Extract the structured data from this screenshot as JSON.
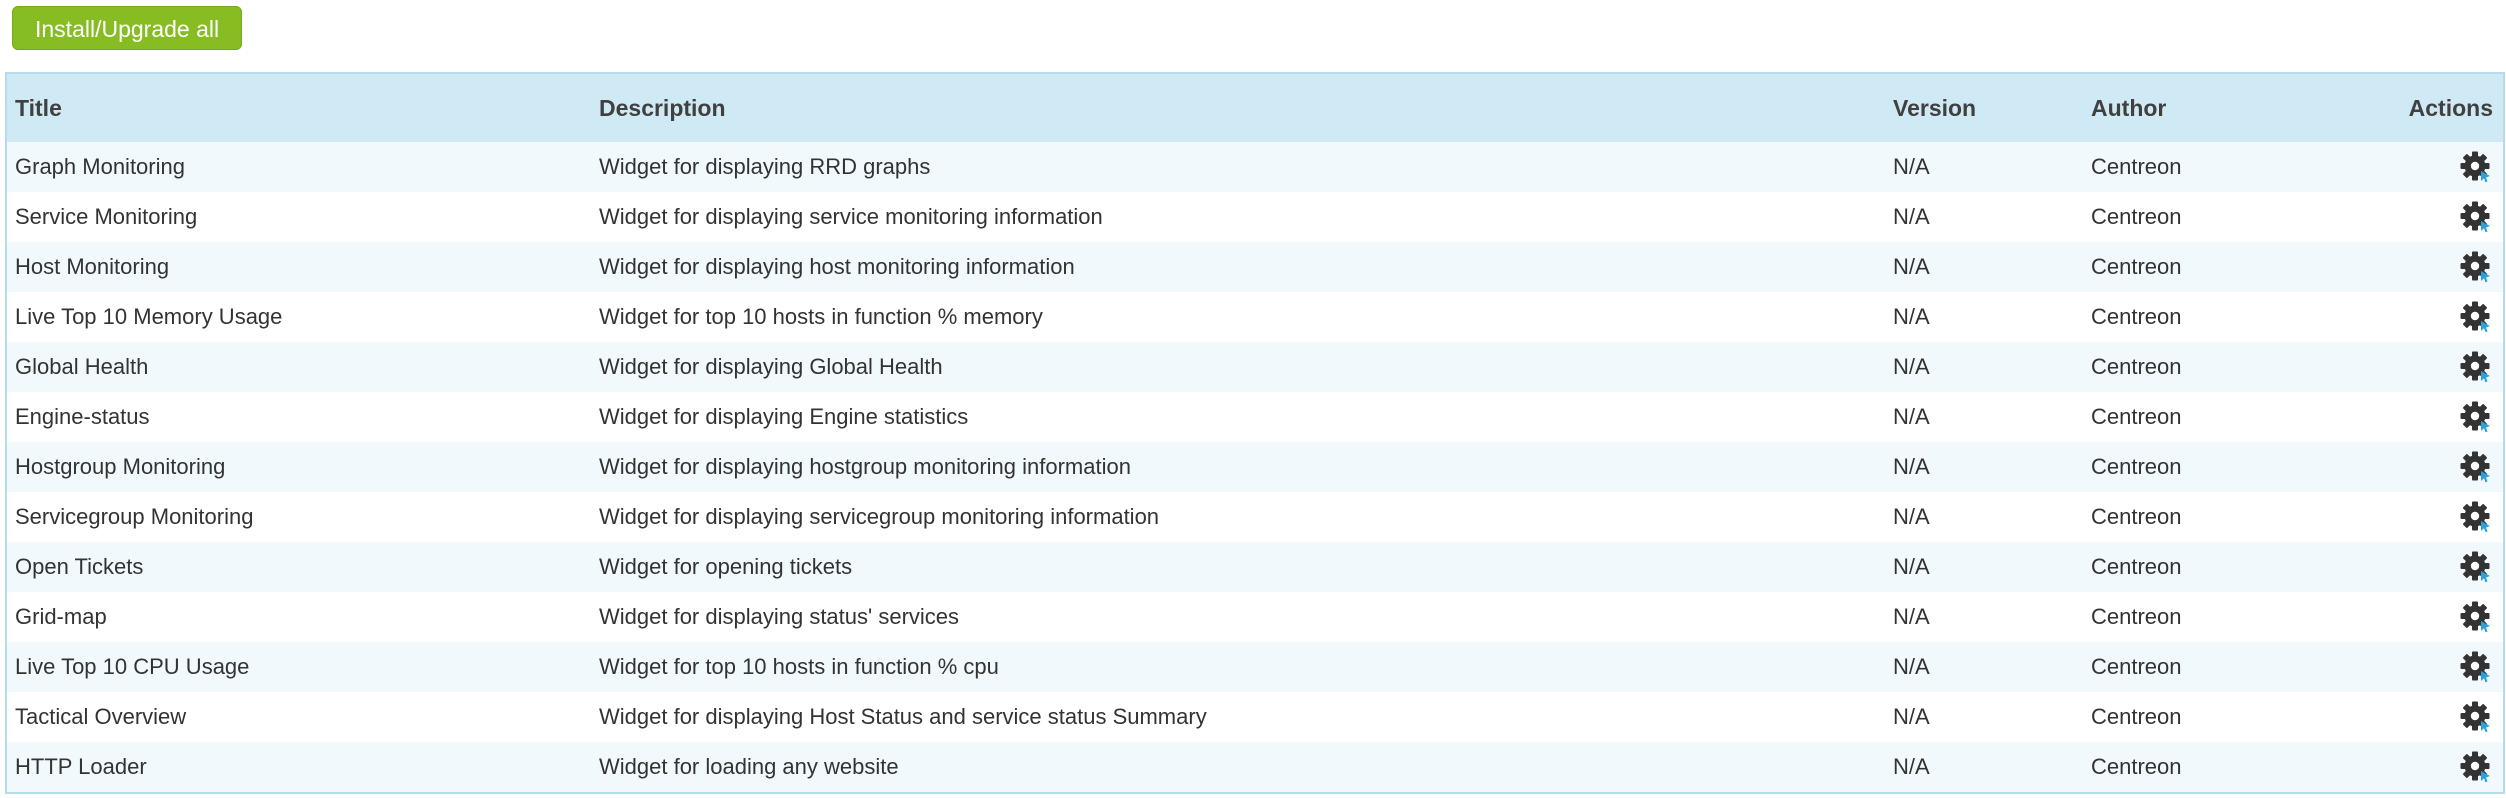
{
  "toolbar": {
    "install_all_label": "Install/Upgrade all"
  },
  "table": {
    "headers": {
      "title": "Title",
      "description": "Description",
      "version": "Version",
      "author": "Author",
      "actions": "Actions"
    },
    "action_icon": "gear-icon",
    "rows": [
      {
        "title": "Graph Monitoring",
        "description": "Widget for displaying RRD graphs",
        "version": "N/A",
        "author": "Centreon"
      },
      {
        "title": "Service Monitoring",
        "description": "Widget for displaying service monitoring information",
        "version": "N/A",
        "author": "Centreon"
      },
      {
        "title": "Host Monitoring",
        "description": "Widget for displaying host monitoring information",
        "version": "N/A",
        "author": "Centreon"
      },
      {
        "title": "Live Top 10 Memory Usage",
        "description": "Widget for top 10 hosts in function % memory",
        "version": "N/A",
        "author": "Centreon"
      },
      {
        "title": "Global Health",
        "description": "Widget for displaying Global Health",
        "version": "N/A",
        "author": "Centreon"
      },
      {
        "title": "Engine-status",
        "description": "Widget for displaying Engine statistics",
        "version": "N/A",
        "author": "Centreon"
      },
      {
        "title": "Hostgroup Monitoring",
        "description": "Widget for displaying hostgroup monitoring information",
        "version": "N/A",
        "author": "Centreon"
      },
      {
        "title": "Servicegroup Monitoring",
        "description": "Widget for displaying servicegroup monitoring information",
        "version": "N/A",
        "author": "Centreon"
      },
      {
        "title": "Open Tickets",
        "description": "Widget for opening tickets",
        "version": "N/A",
        "author": "Centreon"
      },
      {
        "title": "Grid-map",
        "description": "Widget for displaying status' services",
        "version": "N/A",
        "author": "Centreon"
      },
      {
        "title": "Live Top 10 CPU Usage",
        "description": "Widget for top 10 hosts in function % cpu",
        "version": "N/A",
        "author": "Centreon"
      },
      {
        "title": "Tactical Overview",
        "description": "Widget for displaying Host Status and service status Summary",
        "version": "N/A",
        "author": "Centreon"
      },
      {
        "title": "HTTP Loader",
        "description": "Widget for loading any website",
        "version": "N/A",
        "author": "Centreon"
      }
    ]
  },
  "colors": {
    "button_green": "#87bd23",
    "header_bg": "#d0eaf5",
    "row_alt_bg": "#f1f9fc",
    "border": "#b5dcec",
    "gear_dark": "#333333",
    "gear_accent": "#2e9fd8"
  }
}
